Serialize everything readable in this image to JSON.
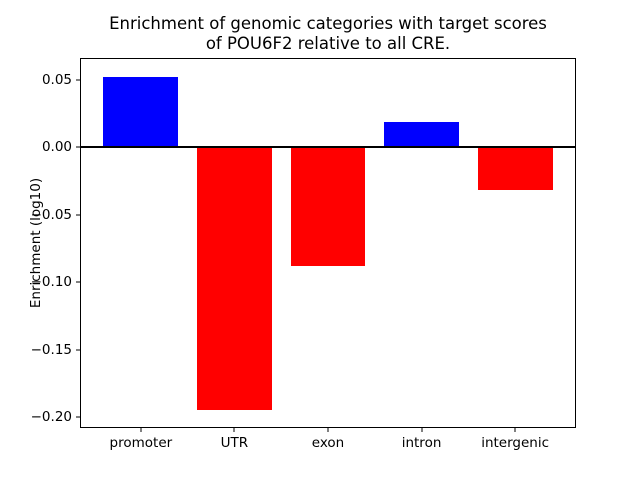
{
  "title": {
    "line1": "Enrichment of genomic categories with target scores",
    "line2": "of POU6F2 relative to all CRE."
  },
  "axes": {
    "ylabel": "Enrichment (log10)"
  },
  "chart_data": {
    "type": "bar",
    "title": "Enrichment of genomic categories with target scores of POU6F2 relative to all CRE.",
    "xlabel": "",
    "ylabel": "Enrichment (log10)",
    "categories": [
      "promoter",
      "UTR",
      "exon",
      "intron",
      "intergenic"
    ],
    "values": [
      0.052,
      -0.195,
      -0.088,
      0.019,
      -0.032
    ],
    "bar_colors": [
      "#0000ff",
      "#ff0000",
      "#ff0000",
      "#0000ff",
      "#ff0000"
    ],
    "positive_color": "#0000ff",
    "negative_color": "#ff0000",
    "ytick_labels": [
      "0.05",
      "0.00",
      "−0.05",
      "−0.10",
      "−0.15",
      "−0.20"
    ],
    "ytick_values": [
      0.05,
      0.0,
      -0.05,
      -0.1,
      -0.15,
      -0.2
    ],
    "ylim": [
      -0.2074,
      0.0654
    ],
    "xlim": [
      -0.64,
      4.64
    ],
    "bar_width": 0.8,
    "zero_line": true,
    "grid": false,
    "legend": null,
    "background_color": "#ffffff",
    "axis_color": "#000000"
  }
}
